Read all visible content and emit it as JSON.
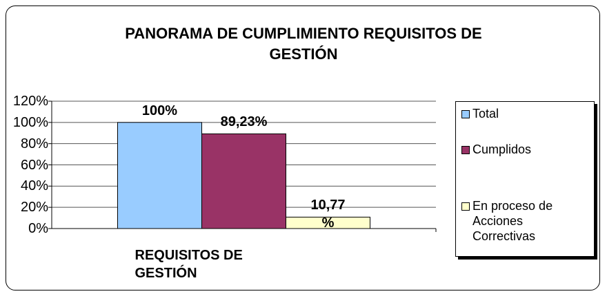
{
  "chart_data": {
    "type": "bar",
    "title": "PANORAMA DE CUMPLIMIENTO REQUISITOS DE GESTIÓN",
    "categories": [
      "REQUISITOS DE GESTIÓN"
    ],
    "series": [
      {
        "name": "Total",
        "color": "#99ccff",
        "values": [
          100
        ],
        "value_labels": [
          "100%"
        ]
      },
      {
        "name": "Cumplidos",
        "color": "#993366",
        "values": [
          89.23
        ],
        "value_labels": [
          "89,23%"
        ]
      },
      {
        "name": "En proceso de Acciones Correctivas",
        "color": "#ffffcc",
        "values": [
          10.77
        ],
        "value_labels": [
          "10,77 %"
        ]
      }
    ],
    "ylim": [
      0,
      120
    ],
    "yticks": [
      {
        "value": 0,
        "label": "0%"
      },
      {
        "value": 20,
        "label": "20%"
      },
      {
        "value": 40,
        "label": "40%"
      },
      {
        "value": 60,
        "label": "60%"
      },
      {
        "value": 80,
        "label": "80%"
      },
      {
        "value": 100,
        "label": "100%"
      },
      {
        "value": 120,
        "label": "120%"
      }
    ],
    "grid": true,
    "legend": "right"
  }
}
